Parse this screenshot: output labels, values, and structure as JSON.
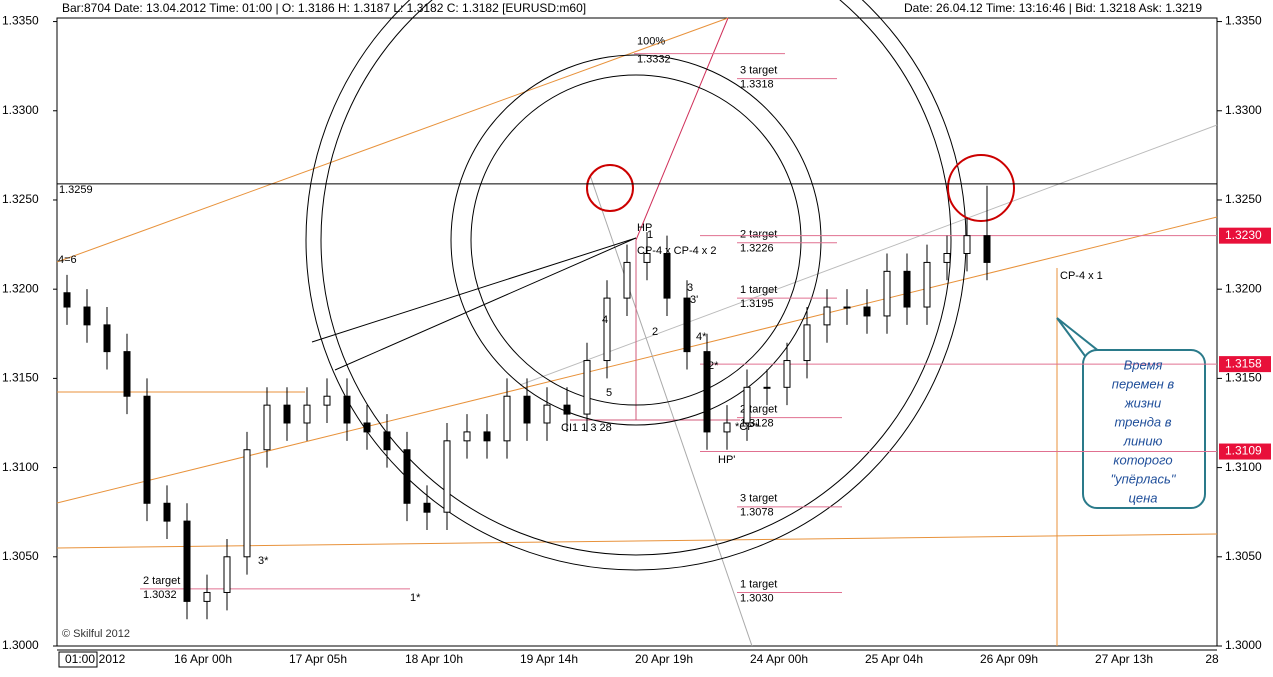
{
  "chart_data": {
    "type": "candlestick",
    "header_left": "Bar:8704 Date: 13.04.2012  Time: 01:00 | O: 1.3186 H: 1.3187 L: 1.3182 C: 1.3182  [EURUSD:m60]",
    "header_right": "Date: 26.04.12  Time: 13:16:46 | Bid: 1.3218  Ask: 1.3219",
    "ylim": [
      1.3,
      1.3352
    ],
    "yticks": [
      {
        "value": 1.335,
        "label": "1.3350"
      },
      {
        "value": 1.33,
        "label": "1.3300"
      },
      {
        "value": 1.325,
        "label": "1.3250"
      },
      {
        "value": 1.32,
        "label": "1.3200"
      },
      {
        "value": 1.315,
        "label": "1.3150"
      },
      {
        "value": 1.31,
        "label": "1.3100"
      },
      {
        "value": 1.305,
        "label": "1.3050"
      },
      {
        "value": 1.3,
        "label": "1.3000"
      }
    ],
    "xlabels": [
      "01:00",
      "2012",
      "16 Apr 00h",
      "17 Apr 05h",
      "18 Apr 10h",
      "19 Apr 14h",
      "20 Apr 19h",
      "24 Apr 00h",
      "25 Apr 04h",
      "26 Apr 09h",
      "27 Apr 13h",
      "28"
    ],
    "open": [
      1.3198,
      1.319,
      1.318,
      1.3165,
      1.314,
      1.308,
      1.307,
      1.3025,
      1.303,
      1.305,
      1.311,
      1.3135,
      1.3125,
      1.3135,
      1.314,
      1.3125,
      1.312,
      1.311,
      1.308,
      1.3075,
      1.3115,
      1.312,
      1.3115,
      1.314,
      1.3125,
      1.3135,
      1.313,
      1.316,
      1.3195,
      1.3215,
      1.322,
      1.3195,
      1.3165,
      1.312,
      1.3125,
      1.3145,
      1.3145,
      1.316,
      1.318,
      1.319,
      1.319,
      1.3185,
      1.321,
      1.319,
      1.3215,
      1.322,
      1.323
    ],
    "high": [
      1.3208,
      1.32,
      1.319,
      1.3175,
      1.315,
      1.309,
      1.308,
      1.304,
      1.306,
      1.312,
      1.3145,
      1.3145,
      1.3145,
      1.315,
      1.315,
      1.3135,
      1.313,
      1.312,
      1.309,
      1.3125,
      1.313,
      1.313,
      1.315,
      1.315,
      1.3145,
      1.3145,
      1.317,
      1.3205,
      1.3225,
      1.3232,
      1.323,
      1.3205,
      1.3175,
      1.3135,
      1.3155,
      1.3155,
      1.317,
      1.319,
      1.32,
      1.32,
      1.32,
      1.322,
      1.322,
      1.3225,
      1.323,
      1.324,
      1.3258
    ],
    "low": [
      1.318,
      1.317,
      1.3155,
      1.313,
      1.307,
      1.306,
      1.3015,
      1.3015,
      1.302,
      1.304,
      1.31,
      1.3115,
      1.3115,
      1.3125,
      1.3115,
      1.311,
      1.31,
      1.307,
      1.3065,
      1.3065,
      1.3105,
      1.3105,
      1.3105,
      1.3115,
      1.3115,
      1.312,
      1.312,
      1.315,
      1.3185,
      1.3205,
      1.3185,
      1.3155,
      1.311,
      1.311,
      1.3115,
      1.3135,
      1.3135,
      1.315,
      1.317,
      1.318,
      1.3175,
      1.3175,
      1.318,
      1.318,
      1.3205,
      1.321,
      1.3205
    ],
    "close": [
      1.319,
      1.318,
      1.3165,
      1.314,
      1.308,
      1.307,
      1.3025,
      1.303,
      1.305,
      1.311,
      1.3135,
      1.3125,
      1.3135,
      1.314,
      1.3125,
      1.312,
      1.311,
      1.308,
      1.3075,
      1.3115,
      1.312,
      1.3115,
      1.314,
      1.3125,
      1.3135,
      1.313,
      1.316,
      1.3195,
      1.3215,
      1.322,
      1.3195,
      1.3165,
      1.312,
      1.3125,
      1.3145,
      1.3145,
      1.316,
      1.318,
      1.319,
      1.319,
      1.3185,
      1.321,
      1.319,
      1.3215,
      1.322,
      1.323,
      1.3215
    ],
    "hline": {
      "value": 1.3259,
      "label": "1.3259"
    },
    "price_markers": [
      {
        "value": 1.323,
        "label": "1.3230"
      },
      {
        "value": 1.3158,
        "label": "1.3158"
      },
      {
        "value": 1.3109,
        "label": "1.3109"
      }
    ],
    "levels": [
      {
        "name": "100%",
        "value": 1.3332,
        "label": "1.3332"
      },
      {
        "name": "3 target",
        "value": 1.3318,
        "label": "1.3318"
      },
      {
        "name": "2 target",
        "value": 1.3226,
        "label": "1.3226"
      },
      {
        "name": "1 target",
        "value": 1.3195,
        "label": "1.3195"
      },
      {
        "name": "2 target",
        "value": 1.3128,
        "label": "1.3128"
      },
      {
        "name": "3 target",
        "value": 1.3078,
        "label": "1.3078"
      },
      {
        "name": "1 target",
        "value": 1.303,
        "label": "1.3030"
      },
      {
        "name": "2 target",
        "value": 1.3032,
        "label": "1.3032"
      }
    ],
    "annotations": [
      "4=6",
      "3*",
      "1*",
      "© Skilful 2012",
      "CP-4 x 1",
      "HP",
      "CP-4 x CP-4 x 2",
      "CI1  1  3  28",
      "HP'",
      "*CP*",
      "1",
      "2",
      "3",
      "4",
      "5",
      "3'",
      "4*",
      "2*"
    ],
    "callout": [
      "Время",
      "перемен в",
      "жизни",
      "тренда в",
      "линию",
      "которого",
      "\"упёрлась\"",
      "цена"
    ]
  }
}
